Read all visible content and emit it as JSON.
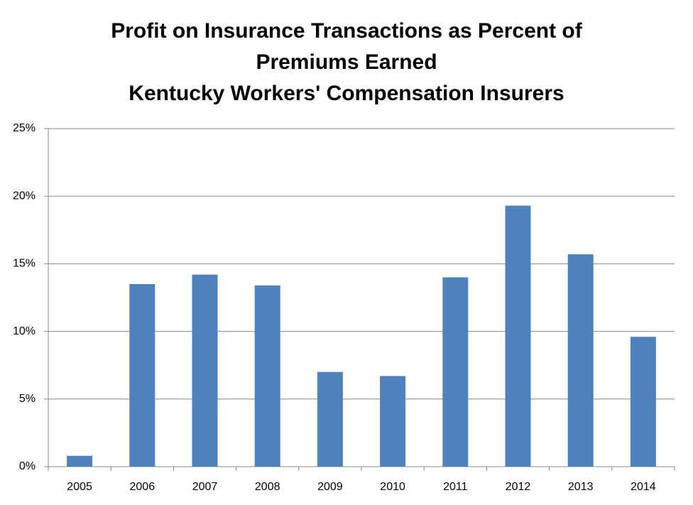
{
  "chart_data": {
    "type": "bar",
    "title": [
      "Profit on Insurance Transactions as Percent of",
      "Premiums Earned",
      "Kentucky Workers' Compensation Insurers"
    ],
    "categories": [
      "2005",
      "2006",
      "2007",
      "2008",
      "2009",
      "2010",
      "2011",
      "2012",
      "2013",
      "2014"
    ],
    "values": [
      0.8,
      13.5,
      14.2,
      13.4,
      7.0,
      6.7,
      14.0,
      19.3,
      15.7,
      9.6
    ],
    "color": "#4f81bd",
    "ylim": [
      0,
      25
    ],
    "yticks": [
      {
        "value": 0,
        "label": "0%"
      },
      {
        "value": 5,
        "label": "5%"
      },
      {
        "value": 10,
        "label": "10%"
      },
      {
        "value": 15,
        "label": "15%"
      },
      {
        "value": 20,
        "label": "20%"
      },
      {
        "value": 25,
        "label": "25%"
      }
    ],
    "grid": true
  }
}
